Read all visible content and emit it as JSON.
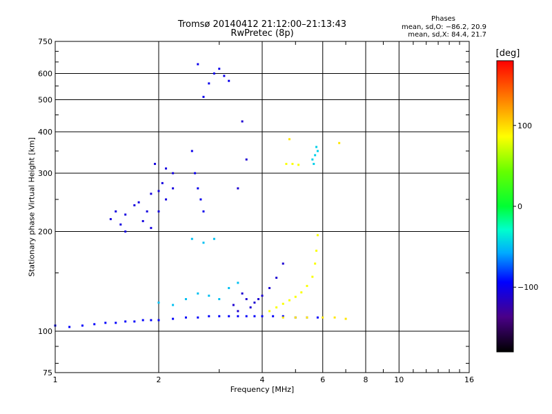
{
  "title": "Tromsø 20140412 21:12:00–21:13:43",
  "subtitle": "RwPretec (8p)",
  "phase_box": {
    "title": "Phases",
    "o_line": "mean, sd,O: −86.2, 20.9",
    "x_line": "mean, sd,X:  84.4, 21.7"
  },
  "colorbar": {
    "unit": "[deg]",
    "ticks": [
      "100",
      "0",
      "−100"
    ]
  },
  "chart_data": {
    "type": "scatter",
    "xlabel": "Frequency [MHz]",
    "ylabel": "Stationary phase Virtual Height [km]",
    "xscale": "log",
    "yscale": "log",
    "xlim": [
      1,
      16
    ],
    "ylim": [
      75,
      750
    ],
    "xticks": [
      1,
      2,
      4,
      6,
      8,
      10,
      16
    ],
    "xtick_labels": [
      "1",
      "2",
      "4",
      "6",
      "8",
      "10",
      "16"
    ],
    "yticks": [
      75,
      100,
      200,
      300,
      400,
      500,
      600,
      750
    ],
    "ytick_labels": [
      "75",
      "100",
      "200",
      "300",
      "400",
      "500",
      "600",
      "750"
    ],
    "grid": true,
    "colorbar_range_deg": [
      -180,
      180
    ],
    "series": [
      {
        "x": [
          1.0,
          1.1,
          1.2,
          1.3,
          1.4,
          1.5,
          1.6,
          1.7,
          1.8,
          1.9,
          2.0,
          2.2,
          2.4,
          2.6,
          2.8,
          3.0,
          3.2,
          3.4,
          3.6,
          3.8,
          4.0,
          4.3,
          4.6,
          5.0,
          5.4,
          5.8
        ],
        "y": [
          104,
          103,
          104,
          105,
          106,
          106,
          107,
          107,
          108,
          108,
          108,
          109,
          110,
          110,
          111,
          111,
          111,
          111,
          111,
          111,
          111,
          111,
          111,
          110,
          110,
          110
        ],
        "phase": -95
      },
      {
        "x": [
          1.45,
          1.5,
          1.55,
          1.6,
          1.7,
          1.8,
          1.9,
          2.0,
          2.1,
          2.2,
          1.6,
          1.75,
          1.9,
          2.05,
          2.2,
          1.85,
          2.0,
          2.1,
          1.95
        ],
        "y": [
          218,
          230,
          210,
          225,
          240,
          215,
          205,
          230,
          250,
          270,
          200,
          245,
          260,
          280,
          300,
          230,
          265,
          310,
          320
        ],
        "phase": -105
      },
      {
        "x": [
          2.5,
          2.55,
          2.6,
          2.65,
          2.7,
          2.8,
          2.9,
          3.0,
          3.1,
          3.2,
          2.6,
          2.7
        ],
        "y": [
          350,
          300,
          270,
          250,
          230,
          560,
          600,
          620,
          590,
          570,
          640,
          510
        ],
        "phase": -100
      },
      {
        "x": [
          3.3,
          3.4,
          3.5,
          3.6,
          3.7,
          3.8,
          3.9,
          4.0,
          4.2,
          4.4,
          4.6,
          3.4,
          3.6,
          3.5
        ],
        "y": [
          120,
          115,
          130,
          125,
          118,
          122,
          125,
          128,
          135,
          145,
          160,
          270,
          330,
          430
        ],
        "phase": -110
      },
      {
        "x": [
          2.0,
          2.2,
          2.4,
          2.6,
          2.8,
          3.0,
          3.2,
          3.4,
          2.5,
          2.7,
          2.9
        ],
        "y": [
          122,
          120,
          125,
          130,
          128,
          125,
          135,
          140,
          190,
          185,
          190
        ],
        "phase": -50
      },
      {
        "x": [
          4.2,
          4.4,
          4.6,
          4.8,
          5.0,
          5.2,
          5.4,
          5.6,
          5.7,
          5.75,
          5.8,
          4.7,
          4.9,
          5.1
        ],
        "y": [
          115,
          118,
          121,
          124,
          127,
          131,
          137,
          146,
          160,
          175,
          195,
          320,
          320,
          318
        ],
        "phase": 85
      },
      {
        "x": [
          4.6,
          5.0,
          5.4,
          6.0,
          6.5,
          7.0,
          4.8,
          6.7
        ],
        "y": [
          110,
          110,
          110,
          110,
          110,
          109,
          380,
          370
        ],
        "phase": 95
      },
      {
        "x": [
          5.6,
          5.7,
          5.8,
          5.65,
          5.75
        ],
        "y": [
          330,
          340,
          350,
          320,
          360
        ],
        "phase": -45
      }
    ]
  }
}
